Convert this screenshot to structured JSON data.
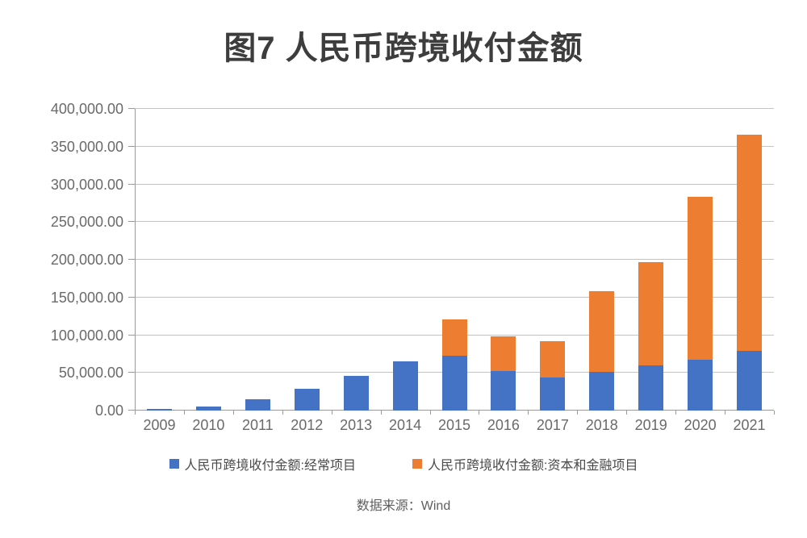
{
  "page": {
    "title": "图7 人民币跨境收付金额",
    "source": "数据来源：Wind"
  },
  "colors": {
    "series_current": "#4472C4",
    "series_capital": "#ED7D31",
    "gridline": "#C3C3C3",
    "axis": "#9A9A9A",
    "tick_text": "#6A6A6A",
    "title_text": "#3D3D3D"
  },
  "chart_data": {
    "type": "bar",
    "stacked": true,
    "title": "图7 人民币跨境收付金额",
    "source": "数据来源：Wind",
    "categories": [
      "2009",
      "2010",
      "2011",
      "2012",
      "2013",
      "2014",
      "2015",
      "2016",
      "2017",
      "2018",
      "2019",
      "2020",
      "2021"
    ],
    "series": [
      {
        "name": "人民币跨境收付金额:经常项目",
        "key": "current-account",
        "color": "#4472C4",
        "values": [
          2000,
          5000,
          15000,
          28500,
          46000,
          65500,
          72300,
          52300,
          43700,
          51100,
          60400,
          67700,
          79400
        ]
      },
      {
        "name": "人民币跨境收付金额:资本和金融项目",
        "key": "capital-financial-account",
        "color": "#ED7D31",
        "values": [
          0,
          0,
          0,
          0,
          0,
          0,
          48700,
          46200,
          48300,
          107400,
          136300,
          216200,
          286700
        ]
      }
    ],
    "xlabel": "",
    "ylabel": "",
    "ylim": [
      0,
      400000
    ],
    "y_tick_step": 50000,
    "y_tick_labels": [
      "0.00",
      "50,000.00",
      "100,000.00",
      "150,000.00",
      "200,000.00",
      "250,000.00",
      "300,000.00",
      "350,000.00",
      "400,000.00"
    ],
    "grid": true,
    "legend_position": "bottom"
  }
}
